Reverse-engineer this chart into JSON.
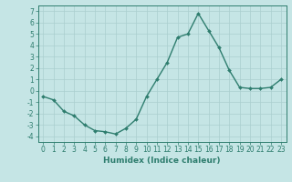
{
  "x": [
    0,
    1,
    2,
    3,
    4,
    5,
    6,
    7,
    8,
    9,
    10,
    11,
    12,
    13,
    14,
    15,
    16,
    17,
    18,
    19,
    20,
    21,
    22,
    23
  ],
  "y": [
    -0.5,
    -0.8,
    -1.8,
    -2.2,
    -3.0,
    -3.5,
    -3.6,
    -3.8,
    -3.3,
    -2.5,
    -0.5,
    1.0,
    2.5,
    4.7,
    5.0,
    6.8,
    5.3,
    3.8,
    1.8,
    0.3,
    0.2,
    0.2,
    0.3,
    1.0
  ],
  "line_color": "#2e7d6e",
  "marker": "D",
  "marker_size": 2,
  "linewidth": 1.0,
  "xlabel": "Humidex (Indice chaleur)",
  "xlim": [
    -0.5,
    23.5
  ],
  "ylim": [
    -4.5,
    7.5
  ],
  "yticks": [
    -4,
    -3,
    -2,
    -1,
    0,
    1,
    2,
    3,
    4,
    5,
    6,
    7
  ],
  "xticks": [
    0,
    1,
    2,
    3,
    4,
    5,
    6,
    7,
    8,
    9,
    10,
    11,
    12,
    13,
    14,
    15,
    16,
    17,
    18,
    19,
    20,
    21,
    22,
    23
  ],
  "bg_color": "#c5e5e5",
  "grid_color": "#aacfcf",
  "line_axis_color": "#2e7d6e",
  "xlabel_fontsize": 6.5,
  "tick_fontsize": 5.5
}
